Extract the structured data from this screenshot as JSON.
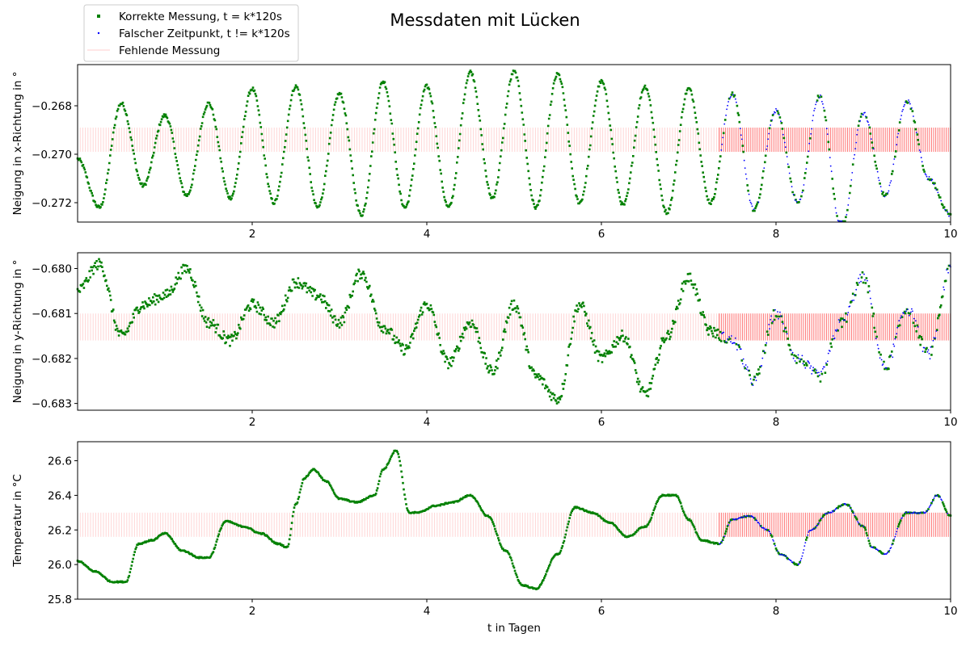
{
  "figure": {
    "title": "Messdaten mit Lücken",
    "legend": {
      "placement": "top-left",
      "entries": [
        {
          "label": "Korrekte Messung, t = k*120s",
          "color": "#008000",
          "marker": "square"
        },
        {
          "label": "Falscher Zeitpunkt, t != k*120s",
          "color": "#0000ff",
          "marker": "dot"
        },
        {
          "label": "Fehlende Messung",
          "color": "#ff0000",
          "marker": "line"
        }
      ]
    }
  },
  "chart_data": [
    {
      "type": "scatter",
      "title": "",
      "xlabel": "",
      "ylabel": "Neigung in x-Richtung in °",
      "xlim": [
        0.0,
        10.0
      ],
      "ylim": [
        -0.2728,
        -0.2663
      ],
      "xticks": [
        2,
        4,
        6,
        8,
        10
      ],
      "yticks": [
        -0.268,
        -0.27,
        -0.272
      ],
      "ytick_labels": [
        "−0.268",
        "−0.270",
        "−0.272"
      ],
      "xtick_labels": [
        "2",
        "4",
        "6",
        "8",
        "10"
      ],
      "gap_band": [
        -0.2699,
        -0.2689
      ],
      "missing_regions": [
        {
          "x_range": [
            0.0,
            7.35
          ],
          "density": "sparse"
        },
        {
          "x_range": [
            7.35,
            10.0
          ],
          "density": "dense"
        }
      ],
      "wrong_time_start": 7.35,
      "series": [
        {
          "name": "Korrekte Messung, t = k*120s",
          "color": "#008000",
          "x": [
            0,
            0.25,
            0.5,
            0.75,
            1,
            1.25,
            1.5,
            1.75,
            2,
            2.25,
            2.5,
            2.75,
            3,
            3.25,
            3.5,
            3.75,
            4,
            4.25,
            4.5,
            4.75,
            5,
            5.25,
            5.5,
            5.75,
            6,
            6.25,
            6.5,
            6.75,
            7,
            7.25,
            7.5,
            7.75,
            8,
            8.25,
            8.5,
            8.75,
            9,
            9.25,
            9.5,
            9.75,
            10
          ],
          "y": [
            -0.2702,
            -0.2722,
            -0.2679,
            -0.2713,
            -0.2684,
            -0.2717,
            -0.2679,
            -0.2718,
            -0.2673,
            -0.272,
            -0.2672,
            -0.2722,
            -0.2675,
            -0.2725,
            -0.267,
            -0.2722,
            -0.2672,
            -0.2722,
            -0.2666,
            -0.2718,
            -0.2666,
            -0.2722,
            -0.2667,
            -0.272,
            -0.267,
            -0.2721,
            -0.2672,
            -0.2724,
            -0.2673,
            -0.272,
            -0.2675,
            -0.2723,
            -0.2682,
            -0.272,
            -0.2676,
            -0.2731,
            -0.2683,
            -0.2717,
            -0.2678,
            -0.271,
            -0.2725
          ]
        }
      ]
    },
    {
      "type": "scatter",
      "title": "",
      "xlabel": "",
      "ylabel": "Neigung in y-Richtung in °",
      "xlim": [
        0.0,
        10.0
      ],
      "ylim": [
        -0.68315,
        -0.67965
      ],
      "xticks": [
        2,
        4,
        6,
        8,
        10
      ],
      "yticks": [
        -0.68,
        -0.681,
        -0.682,
        -0.683
      ],
      "ytick_labels": [
        "−0.680",
        "−0.681",
        "−0.682",
        "−0.683"
      ],
      "xtick_labels": [
        "2",
        "4",
        "6",
        "8",
        "10"
      ],
      "gap_band": [
        -0.6816,
        -0.681
      ],
      "missing_regions": [
        {
          "x_range": [
            0.0,
            7.35
          ],
          "density": "sparse"
        },
        {
          "x_range": [
            7.35,
            10.0
          ],
          "density": "dense"
        }
      ],
      "wrong_time_start": 7.35,
      "series": [
        {
          "name": "Korrekte Messung, t = k*120s",
          "color": "#008000",
          "x": [
            0,
            0.25,
            0.5,
            0.75,
            1,
            1.25,
            1.5,
            1.75,
            2,
            2.25,
            2.5,
            2.75,
            3,
            3.25,
            3.5,
            3.75,
            4,
            4.25,
            4.5,
            4.75,
            5,
            5.25,
            5.5,
            5.75,
            6,
            6.25,
            6.5,
            6.75,
            7,
            7.25,
            7.5,
            7.75,
            8,
            8.25,
            8.5,
            8.75,
            9,
            9.25,
            9.5,
            9.75,
            10
          ],
          "y": [
            -0.6805,
            -0.6799,
            -0.6815,
            -0.6808,
            -0.6806,
            -0.68,
            -0.6812,
            -0.6816,
            -0.6808,
            -0.6812,
            -0.6803,
            -0.6806,
            -0.6812,
            -0.6801,
            -0.6813,
            -0.6818,
            -0.6808,
            -0.6821,
            -0.6812,
            -0.6823,
            -0.6808,
            -0.6824,
            -0.6829,
            -0.6808,
            -0.682,
            -0.6815,
            -0.6828,
            -0.6815,
            -0.6802,
            -0.6814,
            -0.6816,
            -0.6825,
            -0.681,
            -0.682,
            -0.6824,
            -0.6812,
            -0.6802,
            -0.6822,
            -0.6809,
            -0.6819,
            -0.68
          ]
        }
      ]
    },
    {
      "type": "scatter",
      "title": "",
      "xlabel": "t in Tagen",
      "ylabel": "Temperatur in °C",
      "xlim": [
        0.0,
        10.0
      ],
      "ylim": [
        25.8,
        26.71
      ],
      "xticks": [
        2,
        4,
        6,
        8,
        10
      ],
      "yticks": [
        25.8,
        26.0,
        26.2,
        26.4,
        26.6
      ],
      "ytick_labels": [
        "25.8",
        "26.0",
        "26.2",
        "26.4",
        "26.6"
      ],
      "xtick_labels": [
        "2",
        "4",
        "6",
        "8",
        "10"
      ],
      "gap_band": [
        26.16,
        26.3
      ],
      "missing_regions": [
        {
          "x_range": [
            0.0,
            7.35
          ],
          "density": "sparse"
        },
        {
          "x_range": [
            7.35,
            10.0
          ],
          "density": "dense"
        }
      ],
      "wrong_time_start": 7.35,
      "series": [
        {
          "name": "Korrekte Messung, t = k*120s",
          "color": "#008000",
          "x": [
            0,
            0.2,
            0.4,
            0.55,
            0.7,
            0.85,
            1.0,
            1.2,
            1.4,
            1.5,
            1.7,
            1.9,
            2.1,
            2.3,
            2.4,
            2.5,
            2.6,
            2.7,
            2.85,
            3.0,
            3.2,
            3.4,
            3.5,
            3.65,
            3.8,
            3.9,
            4.1,
            4.3,
            4.5,
            4.7,
            4.9,
            5.1,
            5.25,
            5.5,
            5.7,
            5.9,
            6.1,
            6.3,
            6.5,
            6.7,
            6.85,
            7.0,
            7.15,
            7.35,
            7.5,
            7.7,
            7.9,
            8.05,
            8.25,
            8.4,
            8.6,
            8.8,
            9.0,
            9.1,
            9.25,
            9.5,
            9.7,
            9.85,
            10.0
          ],
          "y": [
            26.02,
            25.96,
            25.9,
            25.9,
            26.12,
            26.14,
            26.18,
            26.08,
            26.04,
            26.04,
            26.25,
            26.22,
            26.18,
            26.12,
            26.1,
            26.35,
            26.5,
            26.55,
            26.48,
            26.38,
            26.36,
            26.4,
            26.55,
            26.66,
            26.3,
            26.3,
            26.34,
            26.36,
            26.4,
            26.28,
            26.08,
            25.88,
            25.86,
            26.06,
            26.33,
            26.3,
            26.24,
            26.16,
            26.22,
            26.4,
            26.4,
            26.26,
            26.14,
            26.12,
            26.26,
            26.28,
            26.2,
            26.06,
            26.0,
            26.2,
            26.3,
            26.35,
            26.22,
            26.1,
            26.06,
            26.3,
            26.3,
            26.4,
            26.28
          ]
        }
      ]
    }
  ]
}
